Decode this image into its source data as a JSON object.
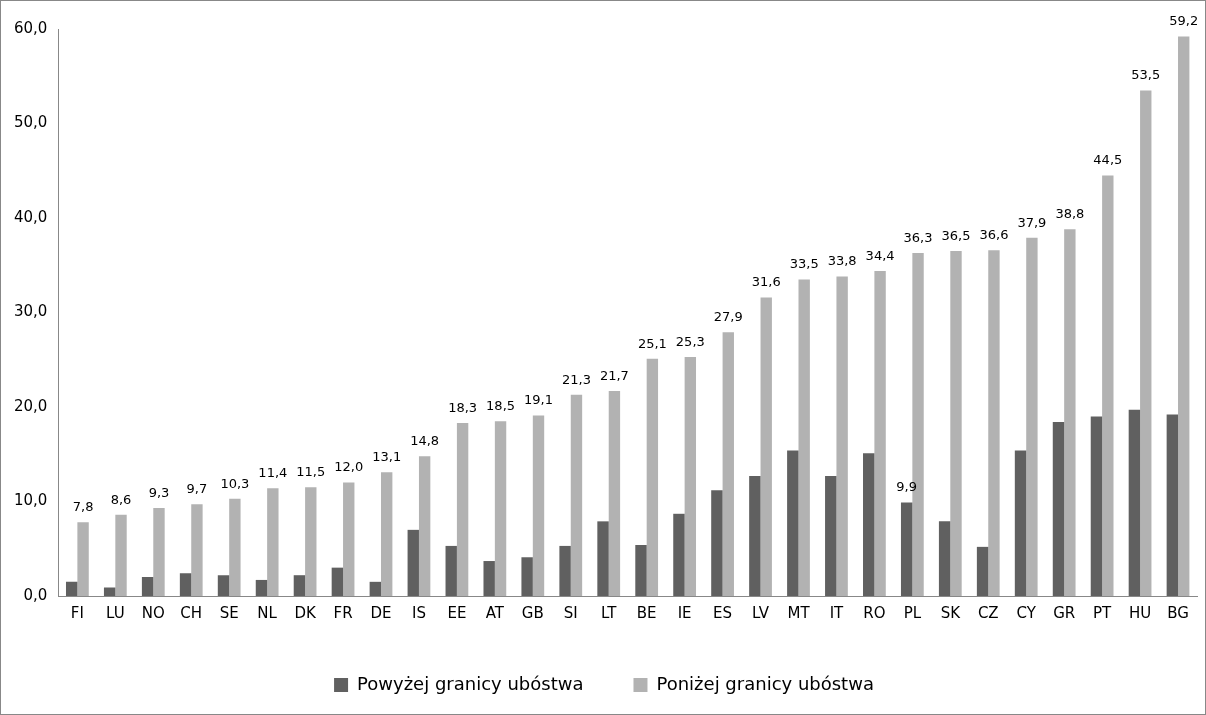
{
  "chart_data": {
    "type": "bar",
    "categories": [
      "FI",
      "LU",
      "NO",
      "CH",
      "SE",
      "NL",
      "DK",
      "FR",
      "DE",
      "IS",
      "EE",
      "AT",
      "GB",
      "SI",
      "LT",
      "BE",
      "IE",
      "ES",
      "LV",
      "MT",
      "IT",
      "RO",
      "PL",
      "SK",
      "CZ",
      "CY",
      "GR",
      "PT",
      "HU",
      "BG"
    ],
    "series": [
      {
        "name": "Powyżej granicy ubóstwa",
        "color": "#606060",
        "values": [
          1.5,
          0.9,
          2.0,
          2.4,
          2.2,
          1.7,
          2.2,
          3.0,
          1.5,
          7.0,
          5.3,
          3.7,
          4.1,
          5.3,
          7.9,
          5.4,
          8.7,
          11.2,
          12.7,
          15.4,
          12.7,
          15.1,
          9.9,
          7.9,
          5.2,
          15.4,
          18.4,
          19.0,
          19.7,
          19.2
        ],
        "value_labels": [
          null,
          null,
          null,
          null,
          null,
          null,
          null,
          null,
          null,
          null,
          null,
          null,
          null,
          null,
          null,
          null,
          null,
          null,
          null,
          null,
          null,
          null,
          "9,9",
          null,
          null,
          null,
          null,
          null,
          null,
          null
        ]
      },
      {
        "name": "Poniżej granicy ubóstwa",
        "color": "#b2b2b2",
        "values": [
          7.8,
          8.6,
          9.3,
          9.7,
          10.3,
          11.4,
          11.5,
          12.0,
          13.1,
          14.8,
          18.3,
          18.5,
          19.1,
          21.3,
          21.7,
          25.1,
          25.3,
          27.9,
          31.6,
          33.5,
          33.8,
          34.4,
          36.3,
          36.5,
          36.6,
          37.9,
          38.8,
          44.5,
          53.5,
          59.2
        ],
        "value_labels": [
          "7,8",
          "8,6",
          "9,3",
          "9,7",
          "10,3",
          "11,4",
          "11,5",
          "12,0",
          "13,1",
          "14,8",
          "18,3",
          "18,5",
          "19,1",
          "21,3",
          "21,7",
          "25,1",
          "25,3",
          "27,9",
          "31,6",
          "33,5",
          "33,8",
          "34,4",
          "36,3",
          "36,5",
          "36,6",
          "37,9",
          "38,8",
          "44,5",
          "53,5",
          "59,2"
        ]
      }
    ],
    "ylim": [
      0,
      60
    ],
    "yticks": [
      {
        "value": 0,
        "label": "0,0"
      },
      {
        "value": 10,
        "label": "10,0"
      },
      {
        "value": 20,
        "label": "20,0"
      },
      {
        "value": 30,
        "label": "30,0"
      },
      {
        "value": 40,
        "label": "40,0"
      },
      {
        "value": 50,
        "label": "50,0"
      },
      {
        "value": 60,
        "label": "60,0"
      }
    ],
    "grid": false,
    "legend": "bottom"
  }
}
